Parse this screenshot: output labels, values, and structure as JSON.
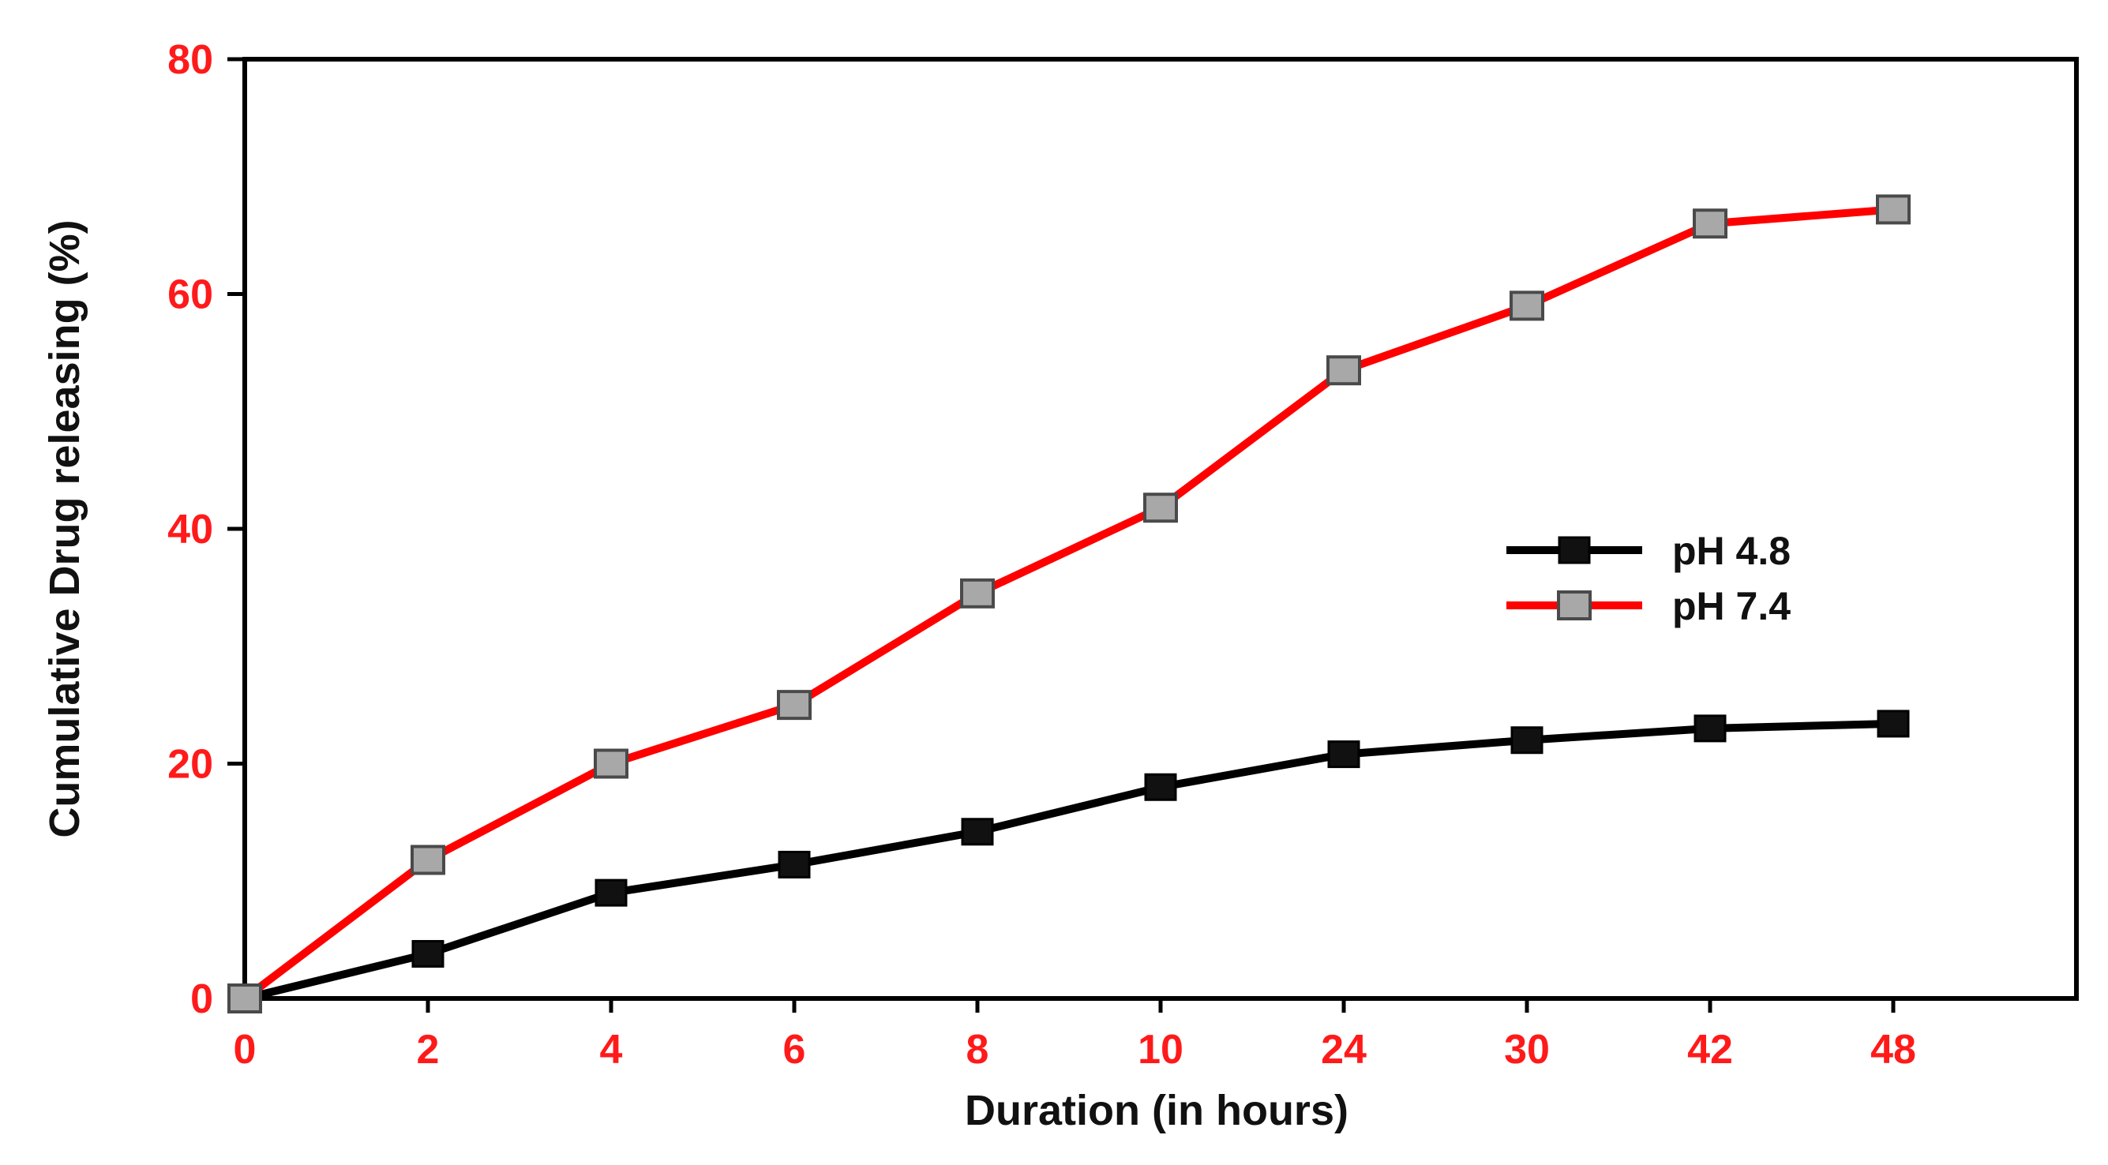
{
  "chart_data": {
    "type": "line",
    "categories": [
      "0",
      "2",
      "4",
      "6",
      "8",
      "10",
      "24",
      "30",
      "42",
      "48"
    ],
    "series": [
      {
        "name": "pH 4.8",
        "values": [
          0,
          3.8,
          9,
          11.4,
          14.2,
          18,
          20.8,
          22,
          23,
          23.4
        ],
        "color": "#000000",
        "marker": "filled-square"
      },
      {
        "name": "pH 7.4",
        "values": [
          0,
          11.8,
          20,
          25,
          34.5,
          41.8,
          53.5,
          59,
          66,
          67.2
        ],
        "color": "#ff0000",
        "marker": "gray-square"
      }
    ],
    "xlabel": "Duration (in hours)",
    "ylabel": "Cumulative Drug releasing (%)",
    "ylim": [
      0,
      80
    ],
    "yticks": [
      "0",
      "20",
      "40",
      "60",
      "80"
    ],
    "grid": false,
    "legend_position": "right-middle",
    "tick_color": "#ff1a1a",
    "axis_title_color": "#111111"
  }
}
